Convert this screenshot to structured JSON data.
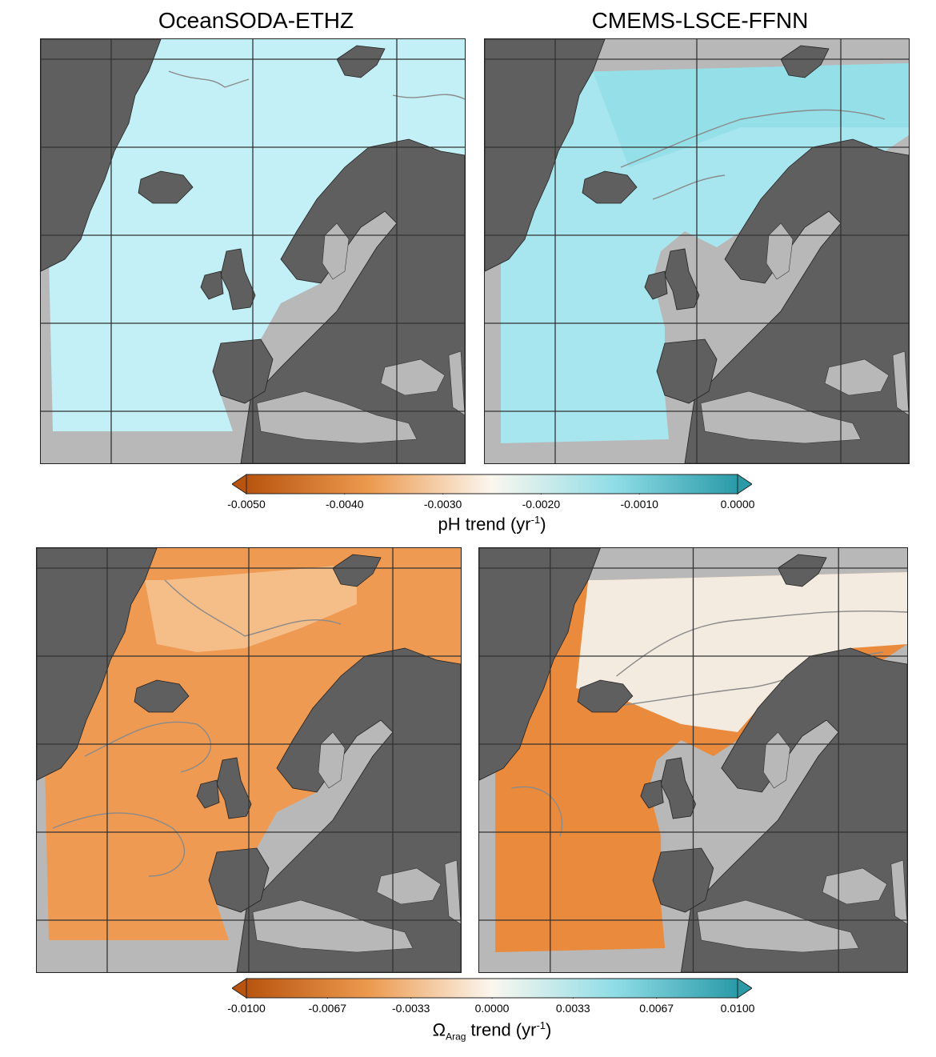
{
  "columns": [
    {
      "title": "OceanSODA-ETHZ"
    },
    {
      "title": "CMEMS-LSCE-FFNN"
    }
  ],
  "colorbars": [
    {
      "label_main": "pH trend (yr",
      "label_sup": "-1",
      "label_end": ")",
      "ticks": [
        "-0.0050",
        "-0.0040",
        "-0.0030",
        "-0.0020",
        "-0.0010",
        "0.0000"
      ],
      "range": [
        -0.005,
        0.0
      ],
      "midpoint": -0.0025
    },
    {
      "label_symbol": "Ω",
      "label_sub": "Arag",
      "label_main": " trend (yr",
      "label_sup": "-1",
      "label_end": ")",
      "ticks": [
        "-0.0100",
        "-0.0067",
        "-0.0033",
        "0.0000",
        "0.0033",
        "0.0067",
        "0.0100"
      ],
      "range": [
        -0.01,
        0.01
      ],
      "midpoint": 0.0
    }
  ],
  "colors": {
    "land": "#5f5f5f",
    "no_data": "#b8b8b8",
    "ph_ocean_soda": "#c3f0f6",
    "ph_cmems": "#a8e6ef",
    "omega_ocean_soda": "#ef9a52",
    "omega_cmems": "#e98a3c",
    "diverging_low": "#b8540f",
    "diverging_mid": "#fbf7ef",
    "diverging_high": "#2a9aa8"
  }
}
